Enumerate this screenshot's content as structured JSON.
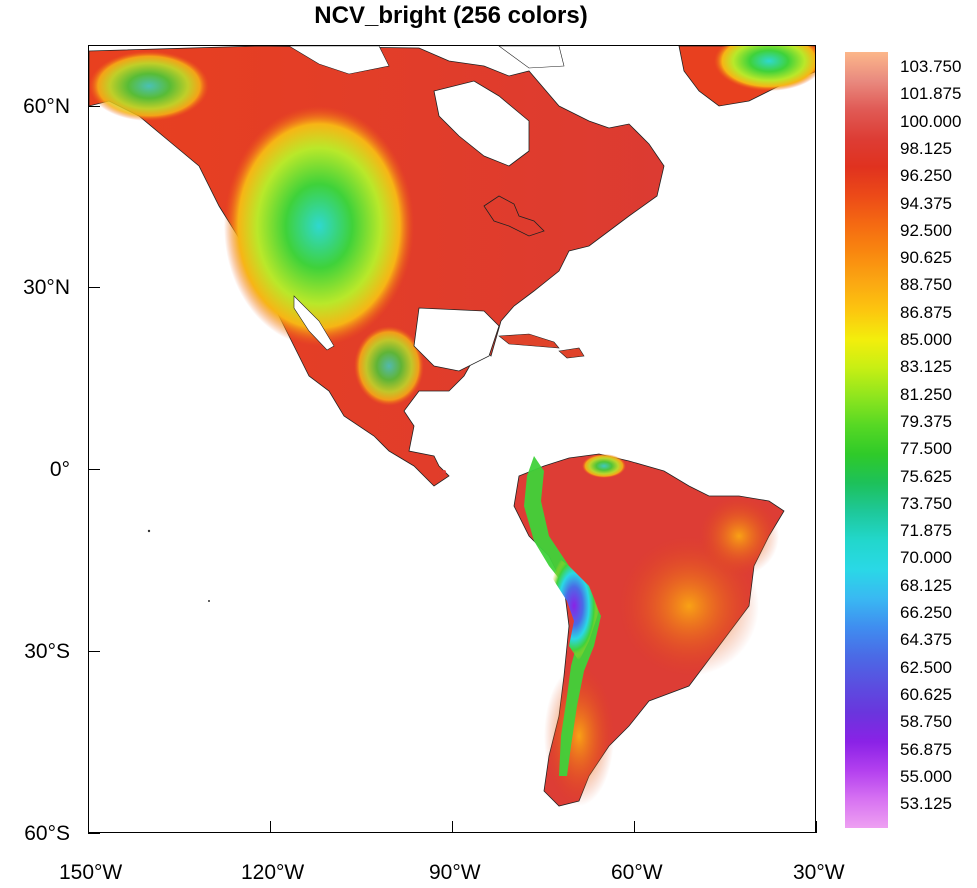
{
  "title": "NCV_bright (256 colors)",
  "map": {
    "lat_ticks": [
      {
        "label": "60°N",
        "value": 60
      },
      {
        "label": "30°N",
        "value": 30
      },
      {
        "label": "0°",
        "value": 0
      },
      {
        "label": "30°S",
        "value": -30
      },
      {
        "label": "60°S",
        "value": -60
      }
    ],
    "lon_ticks": [
      {
        "label": "150°W",
        "value": -150
      },
      {
        "label": "120°W",
        "value": -120
      },
      {
        "label": "90°W",
        "value": -90
      },
      {
        "label": "60°W",
        "value": -60
      },
      {
        "label": "30°W",
        "value": -30
      }
    ],
    "extent": {
      "lon_min": -150,
      "lon_max": -30,
      "lat_min": -60,
      "lat_max": 70
    }
  },
  "colorbar": {
    "labels": [
      "103.750",
      "101.875",
      "100.000",
      "98.125",
      "96.250",
      "94.375",
      "92.500",
      "90.625",
      "88.750",
      "86.875",
      "85.000",
      "83.125",
      "81.250",
      "79.375",
      "77.500",
      "75.625",
      "73.750",
      "71.875",
      "70.000",
      "68.125",
      "66.250",
      "64.375",
      "62.500",
      "60.625",
      "58.750",
      "56.875",
      "55.000",
      "53.125"
    ],
    "colors_top_to_bottom": [
      "#fcb78a",
      "#e98a7f",
      "#e05a55",
      "#dd3d35",
      "#e0321f",
      "#ec4a18",
      "#f56a12",
      "#f9880f",
      "#fba712",
      "#fcc60f",
      "#f3ee0c",
      "#c7ef14",
      "#8ee51e",
      "#56d824",
      "#2fca29",
      "#1dc15a",
      "#1ec89a",
      "#22d7cc",
      "#2ad8e6",
      "#39b9f2",
      "#3f8ef0",
      "#4a6be6",
      "#5a4fe0",
      "#6a35dd",
      "#8a22e6",
      "#b340ef",
      "#d772f2",
      "#eea0f2"
    ]
  }
}
